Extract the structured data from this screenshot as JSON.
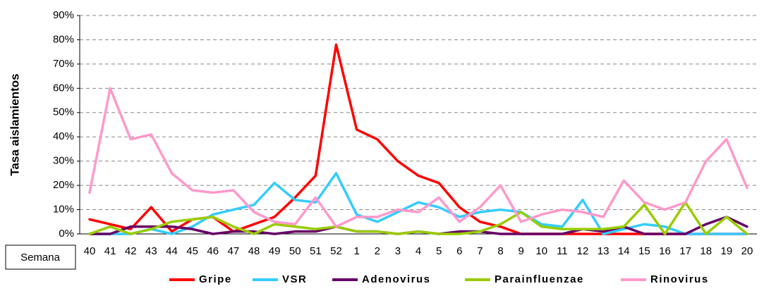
{
  "chart_data": {
    "type": "line",
    "y_label": "Tasa aislamientos",
    "x_label": "Semana",
    "categories": [
      "40",
      "41",
      "42",
      "43",
      "44",
      "45",
      "46",
      "47",
      "48",
      "49",
      "50",
      "51",
      "52",
      "1",
      "2",
      "3",
      "4",
      "5",
      "6",
      "7",
      "8",
      "9",
      "10",
      "11",
      "12",
      "13",
      "14",
      "15",
      "16",
      "17",
      "18",
      "19",
      "20"
    ],
    "series": [
      {
        "name": "Gripe",
        "color": "#ff0000",
        "values": [
          6,
          4,
          2,
          11,
          1,
          6,
          7,
          1,
          4,
          7,
          15,
          24,
          78,
          43,
          39,
          30,
          24,
          21,
          11,
          5,
          3,
          0,
          0,
          0,
          0,
          0,
          0,
          0,
          0,
          0,
          0,
          0,
          0
        ]
      },
      {
        "name": "VSR",
        "color": "#33ccff",
        "values": [
          0,
          0,
          0,
          2,
          0,
          3,
          8,
          10,
          12,
          21,
          14,
          13,
          25,
          8,
          5,
          9,
          13,
          11,
          7,
          9,
          10,
          9,
          4,
          3,
          14,
          0,
          2,
          4,
          3,
          0,
          0,
          0,
          0
        ]
      },
      {
        "name": "Adenovirus",
        "color": "#660066",
        "values": [
          0,
          0,
          3,
          3,
          3,
          2,
          0,
          1,
          1,
          0,
          1,
          1,
          3,
          1,
          1,
          0,
          1,
          0,
          1,
          1,
          0,
          0,
          0,
          0,
          2,
          1,
          3,
          0,
          0,
          0,
          4,
          7,
          3
        ]
      },
      {
        "name": "Parainfluenzae",
        "color": "#99cc00",
        "values": [
          0,
          3,
          0,
          2,
          5,
          6,
          7,
          3,
          0,
          4,
          3,
          2,
          3,
          1,
          1,
          0,
          1,
          0,
          0,
          1,
          4,
          9,
          3,
          2,
          2,
          2,
          3,
          12,
          0,
          13,
          0,
          7,
          0
        ]
      },
      {
        "name": "Rinovirus",
        "color": "#ff99cc",
        "values": [
          17,
          60,
          39,
          41,
          25,
          18,
          17,
          18,
          9,
          5,
          4,
          15,
          3,
          7,
          7,
          10,
          9,
          15,
          5,
          11,
          20,
          5,
          8,
          10,
          9,
          7,
          22,
          13,
          10,
          13,
          30,
          39,
          19
        ]
      }
    ],
    "ylim": [
      0,
      90
    ],
    "yticks": [
      {
        "value": 0,
        "label": "0%"
      },
      {
        "value": 10,
        "label": "10%"
      },
      {
        "value": 20,
        "label": "20%"
      },
      {
        "value": 30,
        "label": "30%"
      },
      {
        "value": 40,
        "label": "40%"
      },
      {
        "value": 50,
        "label": "50%"
      },
      {
        "value": 60,
        "label": "60%"
      },
      {
        "value": 70,
        "label": "70%"
      },
      {
        "value": 80,
        "label": "80%"
      },
      {
        "value": 90,
        "label": "90%"
      }
    ],
    "grid": true,
    "legend": "bottom"
  }
}
